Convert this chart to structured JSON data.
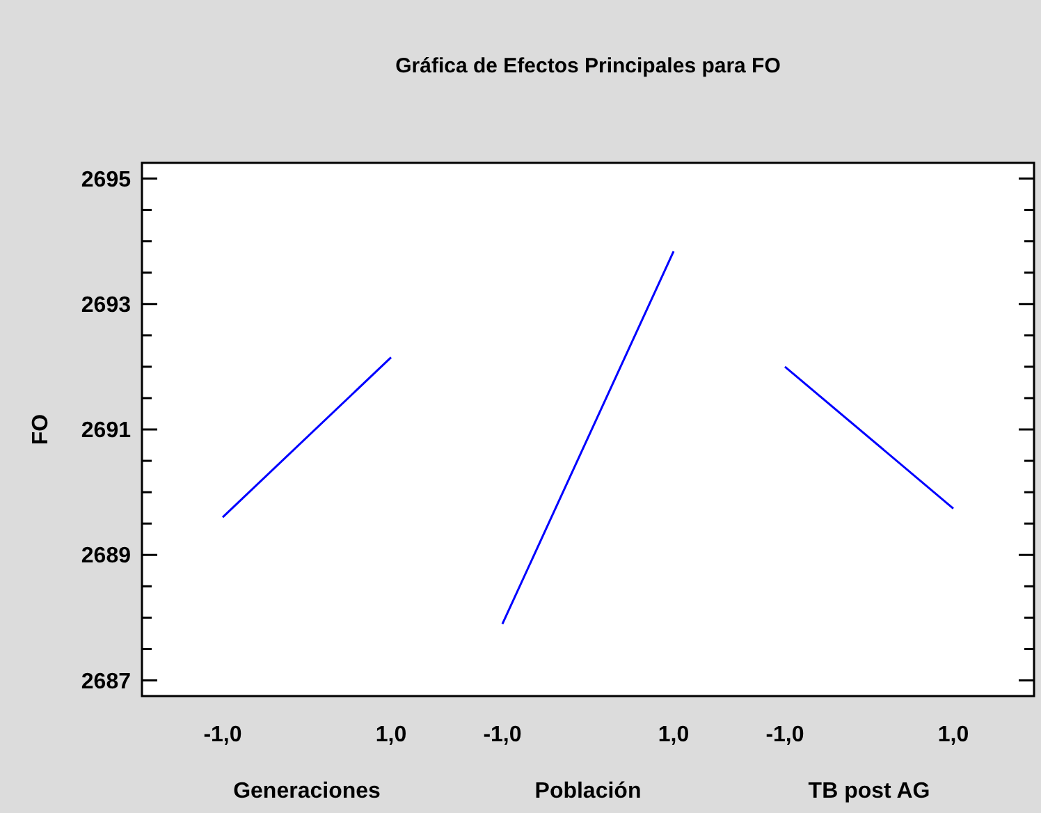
{
  "chart_data": [
    {
      "type": "line",
      "xlabel": "Generaciones",
      "ylabel": "FO",
      "categories": [
        "-1,0",
        "1,0"
      ],
      "ylim": [
        2686.75,
        2695.25
      ],
      "yticks": [
        2687,
        {
          "value": 2687.5,
          "label": null
        },
        {
          "value": 2688,
          "label": null
        },
        {
          "value": 2688.5,
          "label": null
        },
        2689,
        {
          "value": 2689.5,
          "label": null
        },
        {
          "value": 2690,
          "label": null
        },
        {
          "value": 2690.5,
          "label": null
        },
        2691,
        {
          "value": 2691.5,
          "label": null
        },
        {
          "value": 2692,
          "label": null
        },
        {
          "value": 2692.5,
          "label": null
        },
        2693,
        {
          "value": 2693.5,
          "label": null
        },
        {
          "value": 2694,
          "label": null
        },
        {
          "value": 2694.5,
          "label": null
        },
        2695
      ],
      "series": [
        {
          "color": "#0000ff",
          "values": [
            2689.6,
            2692.15
          ]
        }
      ]
    },
    {
      "type": "line",
      "title": "Gráfica de Efectos Principales para FO",
      "xlabel": "Población",
      "categories": [
        "-1,0",
        "1,0"
      ],
      "ylim": [
        2686.75,
        2695.25
      ],
      "tick_labels": "x",
      "series": [
        {
          "color": "#0000ff",
          "values": [
            2687.9,
            2693.84
          ]
        }
      ]
    },
    {
      "type": "line",
      "xlabel": "TB post AG",
      "categories": [
        "-1,0",
        "1,0"
      ],
      "ylim": [
        2686.75,
        2695.25
      ],
      "yticks": [
        2687,
        {
          "value": 2687.5,
          "label": null
        },
        {
          "value": 2688,
          "label": null
        },
        {
          "value": 2688.5,
          "label": null
        },
        2689,
        {
          "value": 2689.5,
          "label": null
        },
        {
          "value": 2690,
          "label": null
        },
        {
          "value": 2690.5,
          "label": null
        },
        2691,
        {
          "value": 2691.5,
          "label": null
        },
        {
          "value": 2692,
          "label": null
        },
        {
          "value": 2692.5,
          "label": null
        },
        2693,
        {
          "value": 2693.5,
          "label": null
        },
        {
          "value": 2694,
          "label": null
        },
        {
          "value": 2694.5,
          "label": null
        },
        2695
      ],
      "tick_labels": "x",
      "series": [
        {
          "color": "#0000ff",
          "values": [
            2692.0,
            2689.74
          ]
        }
      ]
    }
  ]
}
